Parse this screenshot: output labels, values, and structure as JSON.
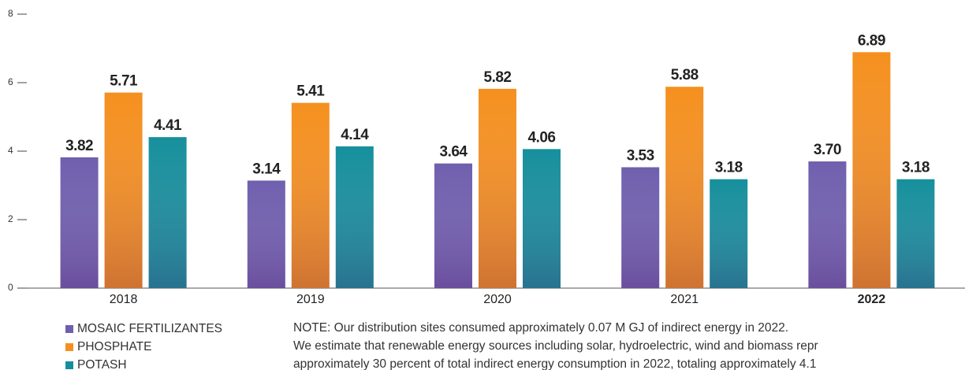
{
  "chart_data": {
    "type": "bar",
    "categories": [
      "2018",
      "2019",
      "2020",
      "2021",
      "2022"
    ],
    "series": [
      {
        "name": "MOSAIC FERTILIZANTES",
        "color": "#6f5fae",
        "values": [
          3.82,
          3.14,
          3.64,
          3.53,
          3.7
        ],
        "value_labels": [
          "3.82",
          "3.14",
          "3.64",
          "3.53",
          "3.70"
        ]
      },
      {
        "name": "PHOSPHATE",
        "color": "#f5901f",
        "values": [
          5.71,
          5.41,
          5.82,
          5.88,
          6.89
        ]
      },
      {
        "name": "POTASH",
        "color": "#168f9c",
        "values": [
          4.41,
          4.14,
          4.06,
          3.18,
          3.18
        ]
      }
    ],
    "ylim": [
      0,
      8
    ],
    "yticks": [
      0,
      2,
      4,
      6,
      8
    ],
    "grid": false,
    "note": [
      "NOTE: Our distribution sites consumed approximately 0.07 M GJ of indirect energy in 2022.",
      "We estimate that renewable energy sources including solar, hydroelectric, wind and biomass repr",
      "approximately 30 percent of total indirect energy consumption in 2022, totaling approximately 4.1"
    ]
  }
}
